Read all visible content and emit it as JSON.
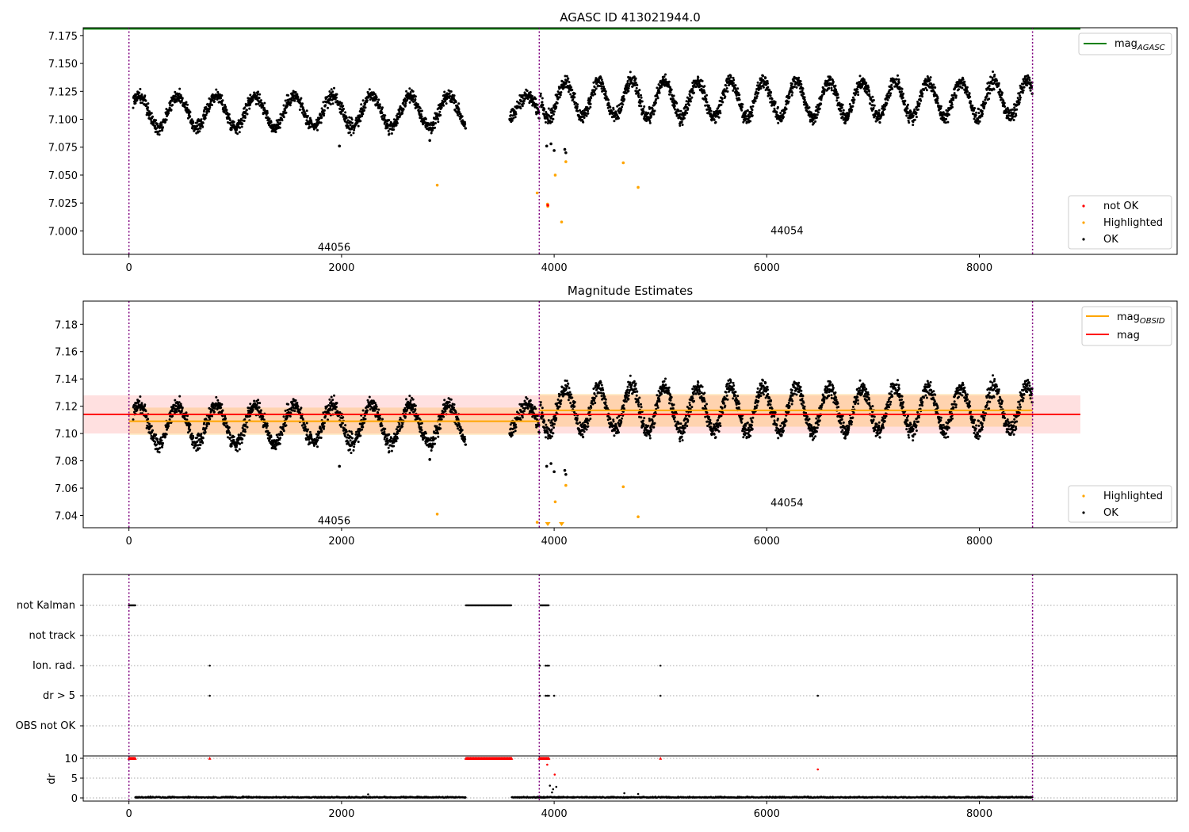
{
  "chart_data": [
    {
      "type": "scatter",
      "title": "AGASC ID 413021944.0",
      "xlim": [
        -430,
        9860
      ],
      "ylim": [
        6.979,
        7.182
      ],
      "xticks": [
        0,
        2000,
        4000,
        6000,
        8000
      ],
      "yticks": [
        7.0,
        7.025,
        7.05,
        7.075,
        7.1,
        7.125,
        7.15,
        7.175
      ],
      "ytick_labels": [
        "7.000",
        "7.025",
        "7.050",
        "7.075",
        "7.100",
        "7.125",
        "7.150",
        "7.175"
      ],
      "vlines": [
        0,
        3860,
        8500
      ],
      "lines": [
        {
          "name": "mag_AGASC",
          "color": "#008000",
          "x": [
            -430,
            8950
          ],
          "y": [
            7.181,
            7.181
          ]
        }
      ],
      "obsid_labels": [
        {
          "text": "44056",
          "x": 1930,
          "y": 6.985
        },
        {
          "text": "44054",
          "x": 6190,
          "y": 7.0
        }
      ],
      "legend_top": {
        "position": "upper-right",
        "entries": [
          {
            "label": "mag",
            "sub": "AGASC",
            "kind": "line",
            "color": "#008000"
          }
        ]
      },
      "legend_bottom": {
        "position": "lower-right",
        "entries": [
          {
            "label": "not OK",
            "kind": "dot",
            "color": "#ff0000"
          },
          {
            "label": "Highlighted",
            "kind": "dot",
            "color": "#ffa500"
          },
          {
            "label": "OK",
            "kind": "dot",
            "color": "#000000"
          }
        ]
      },
      "series": [
        {
          "name": "Highlighted",
          "color": "#ffa500",
          "x": [
            2900,
            3840,
            3940,
            4010,
            4070,
            4110,
            4650,
            4790,
            3938
          ],
          "y": [
            7.041,
            7.034,
            7.022,
            7.05,
            7.008,
            7.062,
            7.061,
            7.039,
            7.024
          ]
        },
        {
          "name": "not OK",
          "color": "#ff0000",
          "x": [
            3940
          ],
          "y": [
            7.023
          ]
        },
        {
          "name": "outliers",
          "color": "#000000",
          "x": [
            1980,
            2830,
            3930,
            3970,
            4000,
            4100,
            4110
          ],
          "y": [
            7.076,
            7.081,
            7.076,
            7.078,
            7.072,
            7.073,
            7.07
          ]
        }
      ],
      "scatter_bands": [
        {
          "x0": 40,
          "x1": 3170,
          "center": 7.107,
          "amplitude": 0.014,
          "period": 365,
          "noise": 0.009
        },
        {
          "x0": 3580,
          "x1": 3860,
          "center": 7.11,
          "amplitude": 0.011,
          "period": 365,
          "noise": 0.009
        },
        {
          "x0": 3870,
          "x1": 8500,
          "center": 7.118,
          "amplitude": 0.016,
          "period": 310,
          "noise": 0.01
        }
      ]
    },
    {
      "type": "scatter",
      "title": "Magnitude Estimates",
      "xlim": [
        -430,
        9860
      ],
      "ylim": [
        7.031,
        7.197
      ],
      "xticks": [
        0,
        2000,
        4000,
        6000,
        8000
      ],
      "yticks": [
        7.04,
        7.06,
        7.08,
        7.1,
        7.12,
        7.14,
        7.16,
        7.18
      ],
      "ytick_labels": [
        "7.04",
        "7.06",
        "7.08",
        "7.10",
        "7.12",
        "7.14",
        "7.16",
        "7.18"
      ],
      "vlines": [
        0,
        3860,
        8500
      ],
      "mag": {
        "value": 7.114,
        "low": 7.1,
        "high": 7.128,
        "x0": -430,
        "x1": 8950,
        "color": "#ff0000"
      },
      "mag_obsid": [
        {
          "x0": 0,
          "x1": 3860,
          "value": 7.109,
          "low": 7.099,
          "high": 7.119
        },
        {
          "x0": 3860,
          "x1": 8500,
          "value": 7.117,
          "low": 7.105,
          "high": 7.129
        }
      ],
      "obsid_labels": [
        {
          "text": "44056",
          "x": 1930,
          "y": 7.036
        },
        {
          "text": "44054",
          "x": 6190,
          "y": 7.049
        }
      ],
      "legend_top": {
        "position": "upper-right",
        "entries": [
          {
            "label": "mag",
            "sub": "OBSID",
            "kind": "line",
            "color": "#ffa500"
          },
          {
            "label": "mag",
            "sub": "",
            "kind": "line",
            "color": "#ff0000"
          }
        ]
      },
      "legend_bottom": {
        "position": "lower-right",
        "entries": [
          {
            "label": "Highlighted",
            "kind": "dot",
            "color": "#ffa500"
          },
          {
            "label": "OK",
            "kind": "dot",
            "color": "#000000"
          }
        ]
      },
      "series": [
        {
          "name": "Highlighted",
          "color": "#ffa500",
          "x": [
            2900,
            3840,
            4010,
            4110,
            4650,
            4790
          ],
          "y": [
            7.041,
            7.035,
            7.05,
            7.062,
            7.061,
            7.039
          ]
        },
        {
          "name": "outliers",
          "color": "#000000",
          "x": [
            1980,
            2830,
            3930,
            3970,
            4000,
            4100,
            4110
          ],
          "y": [
            7.076,
            7.081,
            7.076,
            7.078,
            7.072,
            7.073,
            7.07
          ]
        }
      ],
      "clipped_markers": [
        {
          "x": 3940
        },
        {
          "x": 4070
        }
      ]
    },
    {
      "type": "scatter",
      "title": "",
      "xlim": [
        -430,
        9860
      ],
      "flag_rows": [
        "not Kalman",
        "not track",
        "Ion. rad.",
        "dr > 5",
        "OBS not OK"
      ],
      "vlines": [
        0,
        3860,
        8500
      ],
      "flag_points": {
        "not Kalman": {
          "ranges": [
            [
              0,
              60
            ],
            [
              3170,
              3600
            ],
            [
              3870,
              3950
            ]
          ]
        },
        "not track": {
          "ranges": []
        },
        "Ion. rad.": {
          "points": [
            760,
            3865,
            3920,
            3935,
            3950,
            5000
          ]
        },
        "dr > 5": {
          "points": [
            760,
            3865,
            3920,
            3935,
            3950,
            4000,
            5000,
            6480
          ]
        },
        "OBS not OK": {
          "points": []
        }
      }
    },
    {
      "type": "scatter",
      "title": "",
      "ylabel": "dr",
      "xlim": [
        -430,
        9860
      ],
      "ylim": [
        -0.8,
        10.6
      ],
      "xticks": [
        0,
        2000,
        4000,
        6000,
        8000
      ],
      "yticks": [
        0,
        5,
        10
      ],
      "ytick_labels": [
        "0",
        "5",
        "10"
      ],
      "vlines": [
        0,
        3860,
        8500
      ],
      "capped": {
        "value": 10,
        "color": "#ff0000",
        "ranges": [
          [
            0,
            60
          ],
          [
            3170,
            3600
          ],
          [
            3860,
            3950
          ]
        ],
        "points": [
          760,
          5000
        ]
      },
      "series": [
        {
          "name": "dr > 5",
          "color": "#ff0000",
          "x": [
            3935,
            4005,
            6480
          ],
          "y": [
            8.4,
            5.9,
            7.2
          ]
        },
        {
          "name": "dr",
          "color": "#000000",
          "x": [
            3960,
            3990,
            4020,
            3980,
            4660,
            4790,
            2250
          ],
          "y": [
            3.1,
            2.2,
            2.8,
            1.4,
            1.2,
            1.0,
            0.9
          ]
        }
      ],
      "base_ranges": [
        [
          60,
          3170
        ],
        [
          3600,
          8500
        ]
      ]
    }
  ]
}
